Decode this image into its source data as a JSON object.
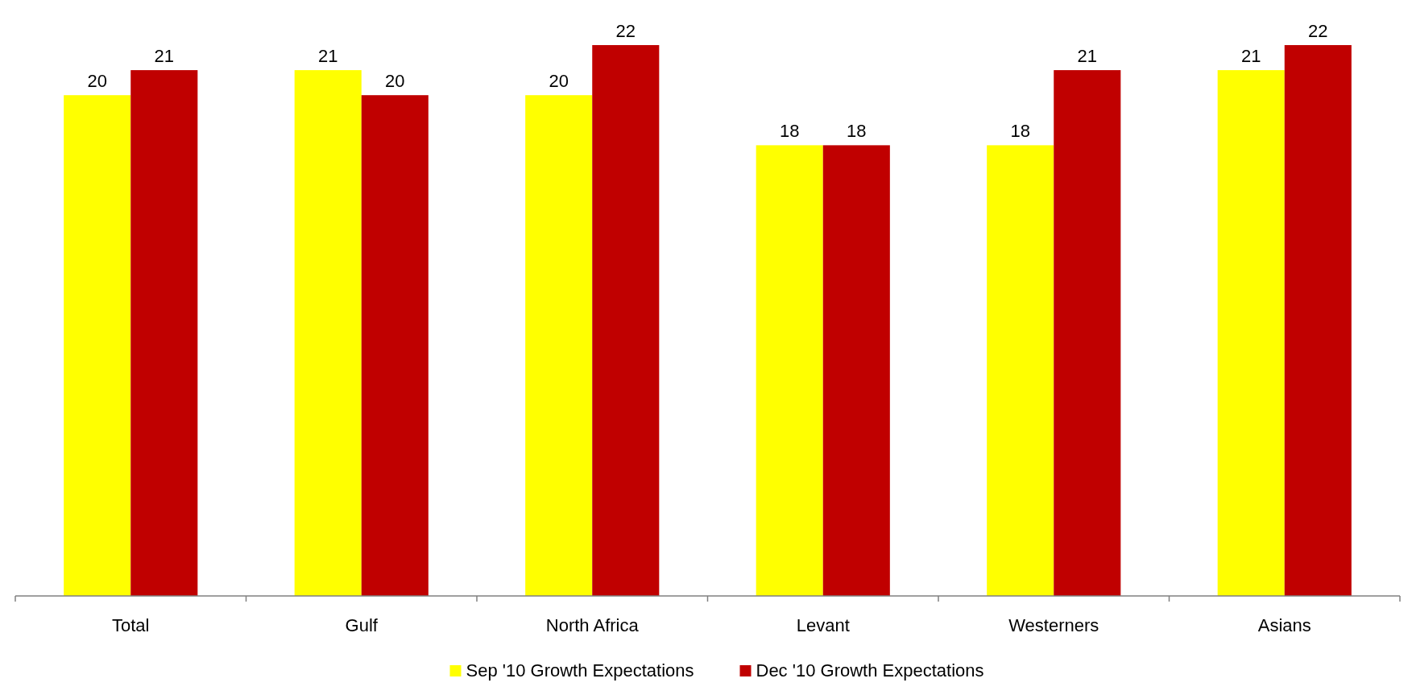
{
  "chart_data": {
    "type": "bar",
    "categories": [
      "Total",
      "Gulf",
      "North Africa",
      "Levant",
      "Westerners",
      "Asians"
    ],
    "series": [
      {
        "name": "Sep '10 Growth Expectations",
        "color": "#ffff00",
        "values": [
          20,
          21,
          20,
          18,
          18,
          21
        ]
      },
      {
        "name": "Dec '10 Growth Expectations",
        "color": "#c00000",
        "values": [
          21,
          20,
          22,
          18,
          21,
          22
        ]
      }
    ],
    "data_labels": true,
    "legend": "bottom"
  }
}
